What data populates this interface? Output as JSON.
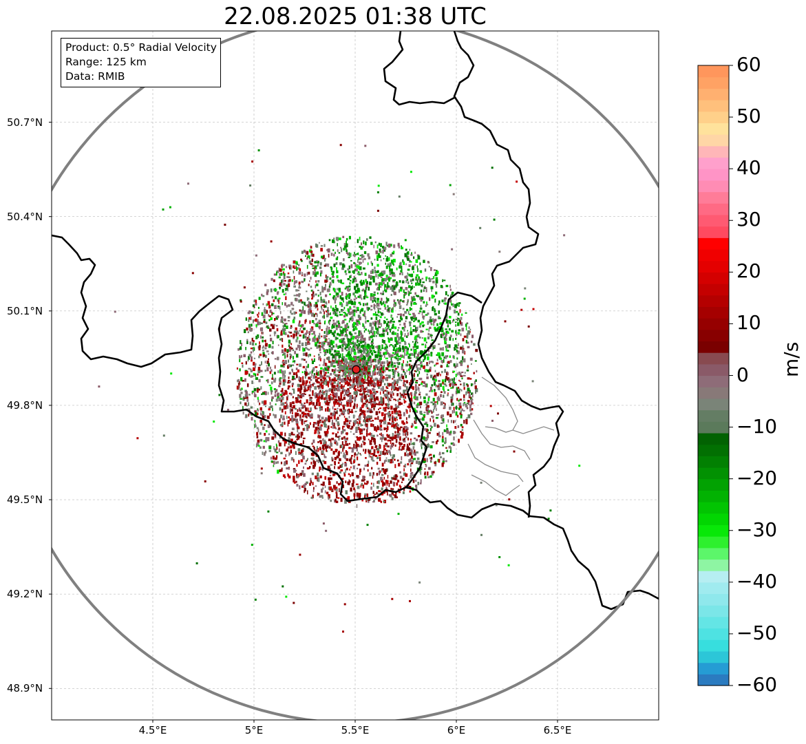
{
  "title": "22.08.2025 01:38 UTC",
  "info": {
    "product": "Product: 0.5° Radial Velocity",
    "range": "Range: 125 km",
    "source": "Data: RMIB"
  },
  "map": {
    "lon_range": [
      4.0,
      7.0
    ],
    "lat_range": [
      48.8,
      50.99
    ],
    "lon_ticks": [
      "4.5°E",
      "5°E",
      "5.5°E",
      "6°E",
      "6.5°E"
    ],
    "lat_ticks": [
      "50.7°N",
      "50.4°N",
      "50.1°N",
      "49.8°N",
      "49.5°N",
      "49.2°N",
      "48.9°N"
    ],
    "radar_site": {
      "lon": 5.505,
      "lat": 49.914
    },
    "range_km": 125,
    "grid": true,
    "colors": {
      "range_ring": "#808080",
      "border": "#000000",
      "admin": "#8a8a8a",
      "site": "#e02020",
      "grid": "#bbbbbb"
    }
  },
  "colorbar": {
    "label": "m/s",
    "min": -60,
    "max": 60,
    "ticks": [
      "60",
      "50",
      "40",
      "30",
      "20",
      "10",
      "0",
      "−10",
      "−20",
      "−30",
      "−40",
      "−50",
      "−60"
    ],
    "bands": [
      "#2b7bc0",
      "#259cd4",
      "#2cc6d8",
      "#37dede",
      "#4ee2e2",
      "#64e5e5",
      "#7be6e8",
      "#8fe8ec",
      "#a0ebef",
      "#b6eef2",
      "#8ef5a3",
      "#5cf66a",
      "#2ef02e",
      "#08e808",
      "#02d602",
      "#02c402",
      "#02b202",
      "#02a202",
      "#029102",
      "#028002",
      "#027002",
      "#026202",
      "#5b7a5b",
      "#647d64",
      "#7a8478",
      "#887978",
      "#8e6c78",
      "#8a5a68",
      "#884a50",
      "#7a0000",
      "#880000",
      "#960000",
      "#a50000",
      "#b40000",
      "#c40000",
      "#d40000",
      "#e40000",
      "#f00000",
      "#ff0000",
      "#ff4a60",
      "#ff5a72",
      "#ff6a84",
      "#ff7c98",
      "#ff8cb4",
      "#ff94c6",
      "#ffa0cc",
      "#ffb6b8",
      "#ffd6a6",
      "#ffe29c",
      "#ffd08a",
      "#ffc07c",
      "#ffb070",
      "#ffa264",
      "#ff965c"
    ]
  }
}
